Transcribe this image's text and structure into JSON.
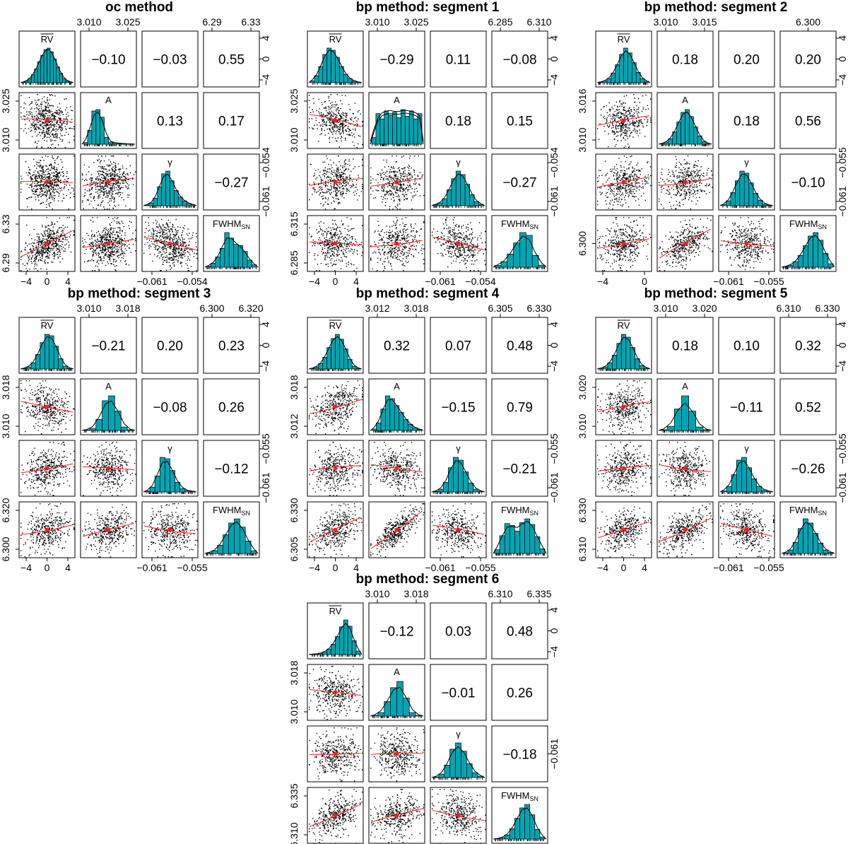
{
  "chart_data": [
    {
      "type": "pairs",
      "title": "oc method",
      "variables": [
        "RV",
        "A",
        "γ",
        "FWHM_SN"
      ],
      "correlations": {
        "RV_A": "−0.10",
        "RV_gamma": "−0.03",
        "RV_FWHM": "0.55",
        "A_gamma": "0.13",
        "A_FWHM": "0.17",
        "gamma_FWHM": "−0.27"
      },
      "axes": {
        "top": [
          [
            "3.010",
            "3.025"
          ],
          [
            "6.29",
            "6.33"
          ]
        ],
        "bottom": [
          [
            "−4",
            "0",
            "4"
          ],
          [
            "−0.061",
            "−0.054"
          ]
        ],
        "left": [
          [
            "3.025",
            "3.010"
          ],
          [
            "6.33",
            "6.29"
          ]
        ],
        "right": [
          [
            "4",
            "0",
            "−4"
          ],
          [
            "−0.054",
            "−0.061"
          ]
        ]
      },
      "hist": {
        "RV": [
          2,
          5,
          12,
          22,
          38,
          58,
          76,
          92,
          96,
          86,
          66,
          44,
          26,
          12,
          5,
          2
        ],
        "A": [
          5,
          40,
          96,
          100,
          78,
          20,
          6,
          4,
          3,
          2,
          1,
          1
        ],
        "gamma": [
          2,
          8,
          22,
          55,
          92,
          100,
          72,
          44,
          25,
          14,
          7,
          3
        ],
        "FWHM": [
          3,
          10,
          26,
          48,
          88,
          74,
          58,
          55,
          40,
          18,
          6
        ]
      },
      "density_overlay": false
    },
    {
      "type": "pairs",
      "title": "bp method: segment 1",
      "variables": [
        "RV",
        "A",
        "γ",
        "FWHM_SN"
      ],
      "correlations": {
        "RV_A": "−0.29",
        "RV_gamma": "0.11",
        "RV_FWHM": "−0.08",
        "A_gamma": "0.18",
        "A_FWHM": "0.15",
        "gamma_FWHM": "−0.27"
      },
      "axes": {
        "top": [
          [
            "3.010",
            "3.025"
          ],
          [
            "6.285",
            "6.310"
          ]
        ],
        "bottom": [
          [
            "−4",
            "0",
            "4"
          ],
          [
            "−0.061",
            "−0.054"
          ]
        ],
        "left": [
          [
            "3.025",
            "3.010"
          ],
          [
            "6.315",
            "6.285"
          ]
        ],
        "right": [
          [
            "4",
            "0",
            "−4"
          ],
          [
            "−0.054",
            "−0.061"
          ]
        ]
      },
      "hist": {
        "RV": [
          5,
          20,
          46,
          80,
          98,
          92,
          72,
          46,
          24,
          12,
          5,
          2
        ],
        "A": [
          10,
          46,
          38,
          50,
          44,
          48,
          40,
          52,
          42,
          50,
          38,
          46
        ],
        "gamma": [
          3,
          8,
          20,
          46,
          78,
          100,
          90,
          62,
          32,
          12,
          4
        ],
        "FWHM": [
          5,
          16,
          38,
          70,
          100,
          92,
          34,
          6
        ]
      },
      "density_overlay": true
    },
    {
      "type": "pairs",
      "title": "bp method: segment 2",
      "variables": [
        "RV",
        "A",
        "γ",
        "FWHM_SN"
      ],
      "correlations": {
        "RV_A": "0.18",
        "RV_gamma": "0.20",
        "RV_FWHM": "0.20",
        "A_gamma": "0.18",
        "A_FWHM": "0.56",
        "gamma_FWHM": "−0.10"
      },
      "axes": {
        "top": [
          [
            "3.010",
            "3.015"
          ],
          [
            "6.300"
          ]
        ],
        "bottom": [
          [
            "−4",
            "0"
          ],
          [
            "−0.061",
            "−0.055"
          ]
        ],
        "left": [
          [
            "3.016",
            "3.010"
          ],
          [
            "6.300"
          ]
        ],
        "right": [
          [
            "4",
            "0",
            "−4"
          ],
          [
            "−0.055",
            "−0.061"
          ]
        ]
      },
      "hist": {
        "RV": [
          2,
          5,
          12,
          28,
          52,
          82,
          100,
          86,
          58,
          30,
          12,
          4
        ],
        "A": [
          2,
          6,
          16,
          36,
          64,
          92,
          100,
          80,
          50,
          24,
          8,
          2
        ],
        "gamma": [
          3,
          14,
          38,
          72,
          100,
          94,
          66,
          36,
          16,
          5,
          2
        ],
        "FWHM": [
          2,
          6,
          16,
          34,
          62,
          90,
          100,
          78,
          40,
          10
        ]
      },
      "density_overlay": false
    },
    {
      "type": "pairs",
      "title": "bp method: segment 3",
      "variables": [
        "RV",
        "A",
        "γ",
        "FWHM_SN"
      ],
      "correlations": {
        "RV_A": "−0.21",
        "RV_gamma": "0.20",
        "RV_FWHM": "0.23",
        "A_gamma": "−0.08",
        "A_FWHM": "0.26",
        "gamma_FWHM": "−0.12"
      },
      "axes": {
        "top": [
          [
            "3.010",
            "3.018"
          ],
          [
            "6.300",
            "6.320"
          ]
        ],
        "bottom": [
          [
            "−4",
            "0",
            "4"
          ],
          [
            "−0.061",
            "−0.055"
          ]
        ],
        "left": [
          [
            "3.018",
            "3.010"
          ],
          [
            "6.320",
            "6.300"
          ]
        ],
        "right": [
          [
            "4",
            "0",
            "−4"
          ],
          [
            "−0.055",
            "−0.061"
          ]
        ]
      },
      "hist": {
        "RV": [
          2,
          6,
          18,
          42,
          76,
          100,
          96,
          66,
          30,
          8,
          2
        ],
        "A": [
          2,
          6,
          32,
          86,
          100,
          56,
          10,
          2
        ],
        "gamma": [
          3,
          14,
          46,
          100,
          96,
          62,
          28,
          10,
          4,
          2
        ],
        "FWHM": [
          2,
          8,
          24,
          54,
          88,
          100,
          76,
          36,
          8
        ]
      },
      "density_overlay": false
    },
    {
      "type": "pairs",
      "title": "bp method: segment 4",
      "variables": [
        "RV",
        "A",
        "γ",
        "FWHM_SN"
      ],
      "correlations": {
        "RV_A": "0.32",
        "RV_gamma": "0.07",
        "RV_FWHM": "0.48",
        "A_gamma": "−0.15",
        "A_FWHM": "0.79",
        "gamma_FWHM": "−0.21"
      },
      "axes": {
        "top": [
          [
            "3.012",
            "3.018"
          ],
          [
            "6.305",
            "6.330"
          ]
        ],
        "bottom": [
          [
            "−4",
            "0",
            "4"
          ],
          [
            "−0.061",
            "−0.055"
          ]
        ],
        "left": [
          [
            "3.018",
            "3.012"
          ],
          [
            "6.330",
            "6.305"
          ]
        ],
        "right": [
          [
            "4",
            "0",
            "−4"
          ],
          [
            "−0.055",
            "−0.061"
          ]
        ]
      },
      "hist": {
        "RV": [
          2,
          6,
          16,
          34,
          62,
          88,
          100,
          86,
          58,
          28,
          8,
          2
        ],
        "A": [
          4,
          22,
          62,
          100,
          92,
          72,
          52,
          32,
          18,
          8,
          3
        ],
        "gamma": [
          2,
          8,
          28,
          70,
          100,
          92,
          58,
          26,
          8,
          2
        ],
        "FWHM": [
          8,
          38,
          64,
          60,
          48,
          66,
          74,
          62,
          36,
          10
        ]
      },
      "density_overlay": false
    },
    {
      "type": "pairs",
      "title": "bp method: segment 5",
      "variables": [
        "RV",
        "A",
        "γ",
        "FWHM_SN"
      ],
      "correlations": {
        "RV_A": "0.18",
        "RV_gamma": "0.10",
        "RV_FWHM": "0.32",
        "A_gamma": "−0.11",
        "A_FWHM": "0.52",
        "gamma_FWHM": "−0.26"
      },
      "axes": {
        "top": [
          [
            "3.010",
            "3.020"
          ],
          [
            "6.310",
            "6.330"
          ]
        ],
        "bottom": [
          [
            "−4",
            "0",
            "4"
          ],
          [
            "−0.061",
            "−0.055"
          ]
        ],
        "left": [
          [
            "3.020",
            "3.010"
          ],
          [
            "6.330",
            "6.310"
          ]
        ],
        "right": [
          [
            "4",
            "0",
            "−4"
          ],
          [
            "−0.055",
            "−0.061"
          ]
        ]
      },
      "hist": {
        "RV": [
          2,
          6,
          18,
          40,
          74,
          100,
          92,
          62,
          30,
          10,
          3
        ],
        "A": [
          2,
          12,
          62,
          100,
          56,
          10,
          2
        ],
        "gamma": [
          3,
          16,
          50,
          92,
          100,
          70,
          38,
          16,
          6,
          2
        ],
        "FWHM": [
          2,
          10,
          32,
          72,
          100,
          88,
          58,
          30,
          10,
          3
        ]
      },
      "density_overlay": false
    },
    {
      "type": "pairs",
      "title": "bp method: segment 6",
      "variables": [
        "RV",
        "A",
        "γ",
        "FWHM_SN"
      ],
      "correlations": {
        "RV_A": "−0.12",
        "RV_gamma": "0.03",
        "RV_FWHM": "0.48",
        "A_gamma": "−0.01",
        "A_FWHM": "0.26",
        "gamma_FWHM": "−0.18"
      },
      "axes": {
        "top": [
          [
            "3.010",
            "3.018"
          ],
          [
            "6.310",
            "6.335"
          ]
        ],
        "bottom": [
          [
            "−4",
            "0",
            "4"
          ],
          [
            "−0.061",
            "−0.056"
          ]
        ],
        "left": [
          [
            "3.018",
            "3.010"
          ],
          [
            "6.335",
            "6.310"
          ]
        ],
        "right": [
          [
            "4",
            "0",
            "−4"
          ],
          [
            "−0.061"
          ]
        ]
      },
      "hist": {
        "RV": [
          1,
          2,
          4,
          8,
          16,
          30,
          52,
          80,
          100,
          82,
          40,
          10
        ],
        "A": [
          2,
          10,
          42,
          82,
          100,
          52,
          10,
          2
        ],
        "gamma": [
          2,
          10,
          36,
          82,
          100,
          76,
          40,
          14,
          4
        ],
        "FWHM": [
          1,
          4,
          12,
          30,
          60,
          90,
          100,
          70,
          28,
          6
        ]
      },
      "density_overlay": false
    }
  ]
}
